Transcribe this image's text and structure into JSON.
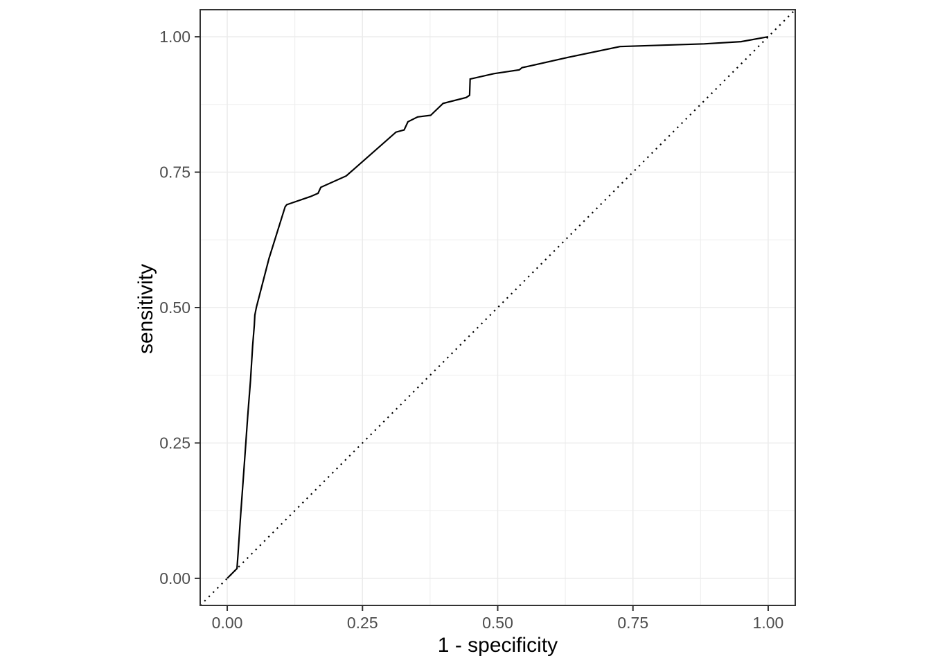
{
  "figure": {
    "background": "#ffffff",
    "description": "ROC curve plot with dotted chance diagonal"
  },
  "chart_data": {
    "type": "line",
    "title": "",
    "xlabel": "1 - specificity",
    "ylabel": "sensitivity",
    "xlim": [
      -0.05,
      1.05
    ],
    "ylim": [
      -0.05,
      1.05
    ],
    "grid": "major-and-minor",
    "legend": "none",
    "x_ticks": {
      "values": [
        0.0,
        0.25,
        0.5,
        0.75,
        1.0
      ],
      "labels": [
        "0.00",
        "0.25",
        "0.50",
        "0.75",
        "1.00"
      ]
    },
    "y_ticks": {
      "values": [
        0.0,
        0.25,
        0.5,
        0.75,
        1.0
      ],
      "labels": [
        "0.00",
        "0.25",
        "0.50",
        "0.75",
        "1.00"
      ]
    },
    "x_minor_ticks": [
      0.125,
      0.375,
      0.625,
      0.875
    ],
    "y_minor_ticks": [
      0.125,
      0.375,
      0.625,
      0.875
    ],
    "series": [
      {
        "name": "roc-curve",
        "linestyle": "solid",
        "color": "#000000",
        "points": [
          [
            0.0,
            0.0
          ],
          [
            0.018,
            0.018
          ],
          [
            0.02,
            0.046
          ],
          [
            0.024,
            0.106
          ],
          [
            0.032,
            0.216
          ],
          [
            0.038,
            0.301
          ],
          [
            0.043,
            0.365
          ],
          [
            0.047,
            0.429
          ],
          [
            0.05,
            0.467
          ],
          [
            0.051,
            0.486
          ],
          [
            0.054,
            0.501
          ],
          [
            0.077,
            0.59
          ],
          [
            0.107,
            0.686
          ],
          [
            0.11,
            0.69
          ],
          [
            0.154,
            0.705
          ],
          [
            0.168,
            0.711
          ],
          [
            0.173,
            0.722
          ],
          [
            0.22,
            0.743
          ],
          [
            0.312,
            0.824
          ],
          [
            0.327,
            0.828
          ],
          [
            0.334,
            0.843
          ],
          [
            0.352,
            0.852
          ],
          [
            0.376,
            0.855
          ],
          [
            0.399,
            0.877
          ],
          [
            0.442,
            0.888
          ],
          [
            0.448,
            0.892
          ],
          [
            0.449,
            0.922
          ],
          [
            0.493,
            0.932
          ],
          [
            0.54,
            0.939
          ],
          [
            0.545,
            0.943
          ],
          [
            0.63,
            0.962
          ],
          [
            0.726,
            0.982
          ],
          [
            0.882,
            0.987
          ],
          [
            0.95,
            0.991
          ],
          [
            1.0,
            1.0
          ]
        ]
      },
      {
        "name": "chance-diagonal",
        "linestyle": "dotted",
        "color": "#000000",
        "points": [
          [
            -0.05,
            -0.05
          ],
          [
            1.05,
            1.05
          ]
        ]
      }
    ],
    "colors": {
      "panel_background": "#ffffff",
      "panel_border": "#333333",
      "grid_major": "#ebebeb",
      "grid_minor": "#ededed",
      "tick_mark": "#333333",
      "tick_label": "#4d4d4d",
      "axis_title": "#000000"
    }
  }
}
